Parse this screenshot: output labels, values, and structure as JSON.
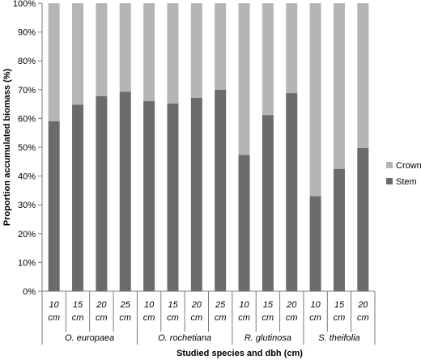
{
  "chart_data": {
    "type": "bar",
    "stacked": true,
    "percent": true,
    "ylabel": "Proportion accumulated biomass (%)",
    "xlabel": "Studied species and dbh (cm)",
    "ylim": [
      0,
      100
    ],
    "yticks": [
      "0%",
      "10%",
      "20%",
      "30%",
      "40%",
      "50%",
      "60%",
      "70%",
      "80%",
      "90%",
      "100%"
    ],
    "groups": [
      {
        "name": "O. europaea",
        "size": 4
      },
      {
        "name": "O. rochetiana",
        "size": 4
      },
      {
        "name": "R. glutinosa",
        "size": 3
      },
      {
        "name": "S. theifolia",
        "size": 3
      }
    ],
    "categories": [
      [
        "10",
        "cm"
      ],
      [
        "15",
        "cm"
      ],
      [
        "20",
        "cm"
      ],
      [
        "25",
        "cm"
      ],
      [
        "10",
        "cm"
      ],
      [
        "15",
        "cm"
      ],
      [
        "20",
        "cm"
      ],
      [
        "25",
        "cm"
      ],
      [
        "10",
        "cm"
      ],
      [
        "15",
        "cm"
      ],
      [
        "20",
        "cm"
      ],
      [
        "10",
        "cm"
      ],
      [
        "15",
        "cm"
      ],
      [
        "20",
        "cm"
      ]
    ],
    "series": [
      {
        "name": "Stem",
        "color": "#6b6b6b",
        "values": [
          59,
          64.8,
          67.7,
          69.3,
          66,
          65.2,
          67.2,
          70,
          47.3,
          61.2,
          68.8,
          33,
          42.5,
          49.8
        ]
      },
      {
        "name": "Crown",
        "color": "#b5b5b5",
        "values": [
          41,
          35.2,
          32.3,
          30.7,
          34,
          34.8,
          32.8,
          30,
          52.7,
          38.8,
          31.2,
          67,
          57.5,
          50.2
        ]
      }
    ],
    "legend": {
      "position": "right",
      "order": [
        "Crown",
        "Stem"
      ]
    },
    "grid": false
  }
}
